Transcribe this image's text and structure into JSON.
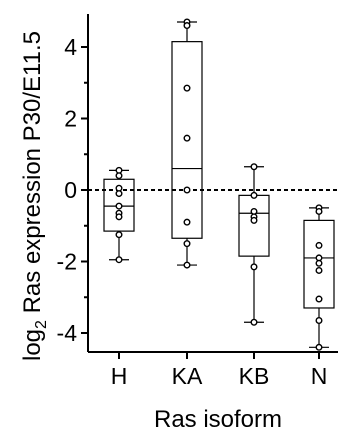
{
  "chart_data": {
    "type": "box",
    "title": "",
    "xlabel": "Ras isoform",
    "ylabel_prefix": "log",
    "ylabel_subscript": "2",
    "ylabel_suffix": " Ras expression P30/E11.5",
    "categories": [
      "H",
      "KA",
      "KB",
      "N"
    ],
    "ylim": [
      -4.5,
      5
    ],
    "yticks": [
      -4,
      -2,
      0,
      2,
      4
    ],
    "ytick_labels": [
      "-4",
      "-2",
      "0",
      "2",
      "4"
    ],
    "reference_line": 0,
    "grid": false,
    "boxes": [
      {
        "category": "H",
        "min": -1.95,
        "q1": -1.15,
        "median": -0.45,
        "q3": 0.3,
        "max": 0.55,
        "points": [
          0.55,
          0.4,
          0.05,
          -0.1,
          -0.45,
          -0.65,
          -0.75,
          -1.25,
          -1.95
        ]
      },
      {
        "category": "KA",
        "min": -2.1,
        "q1": -1.35,
        "median": 0.6,
        "q3": 4.15,
        "max": 4.7,
        "points": [
          4.7,
          4.6,
          2.85,
          1.45,
          0.0,
          -0.9,
          -1.5,
          -2.1
        ]
      },
      {
        "category": "KB",
        "min": -3.7,
        "q1": -1.85,
        "median": -0.65,
        "q3": -0.15,
        "max": 0.65,
        "points": [
          0.65,
          -0.15,
          -0.6,
          -0.75,
          -0.85,
          -2.15,
          -3.7
        ]
      },
      {
        "category": "N",
        "min": -4.4,
        "q1": -3.3,
        "median": -1.9,
        "q3": -0.85,
        "max": -0.5,
        "points": [
          -0.5,
          -0.6,
          -1.55,
          -1.9,
          -2.05,
          -2.25,
          -3.05,
          -3.65,
          -4.4
        ]
      }
    ]
  }
}
